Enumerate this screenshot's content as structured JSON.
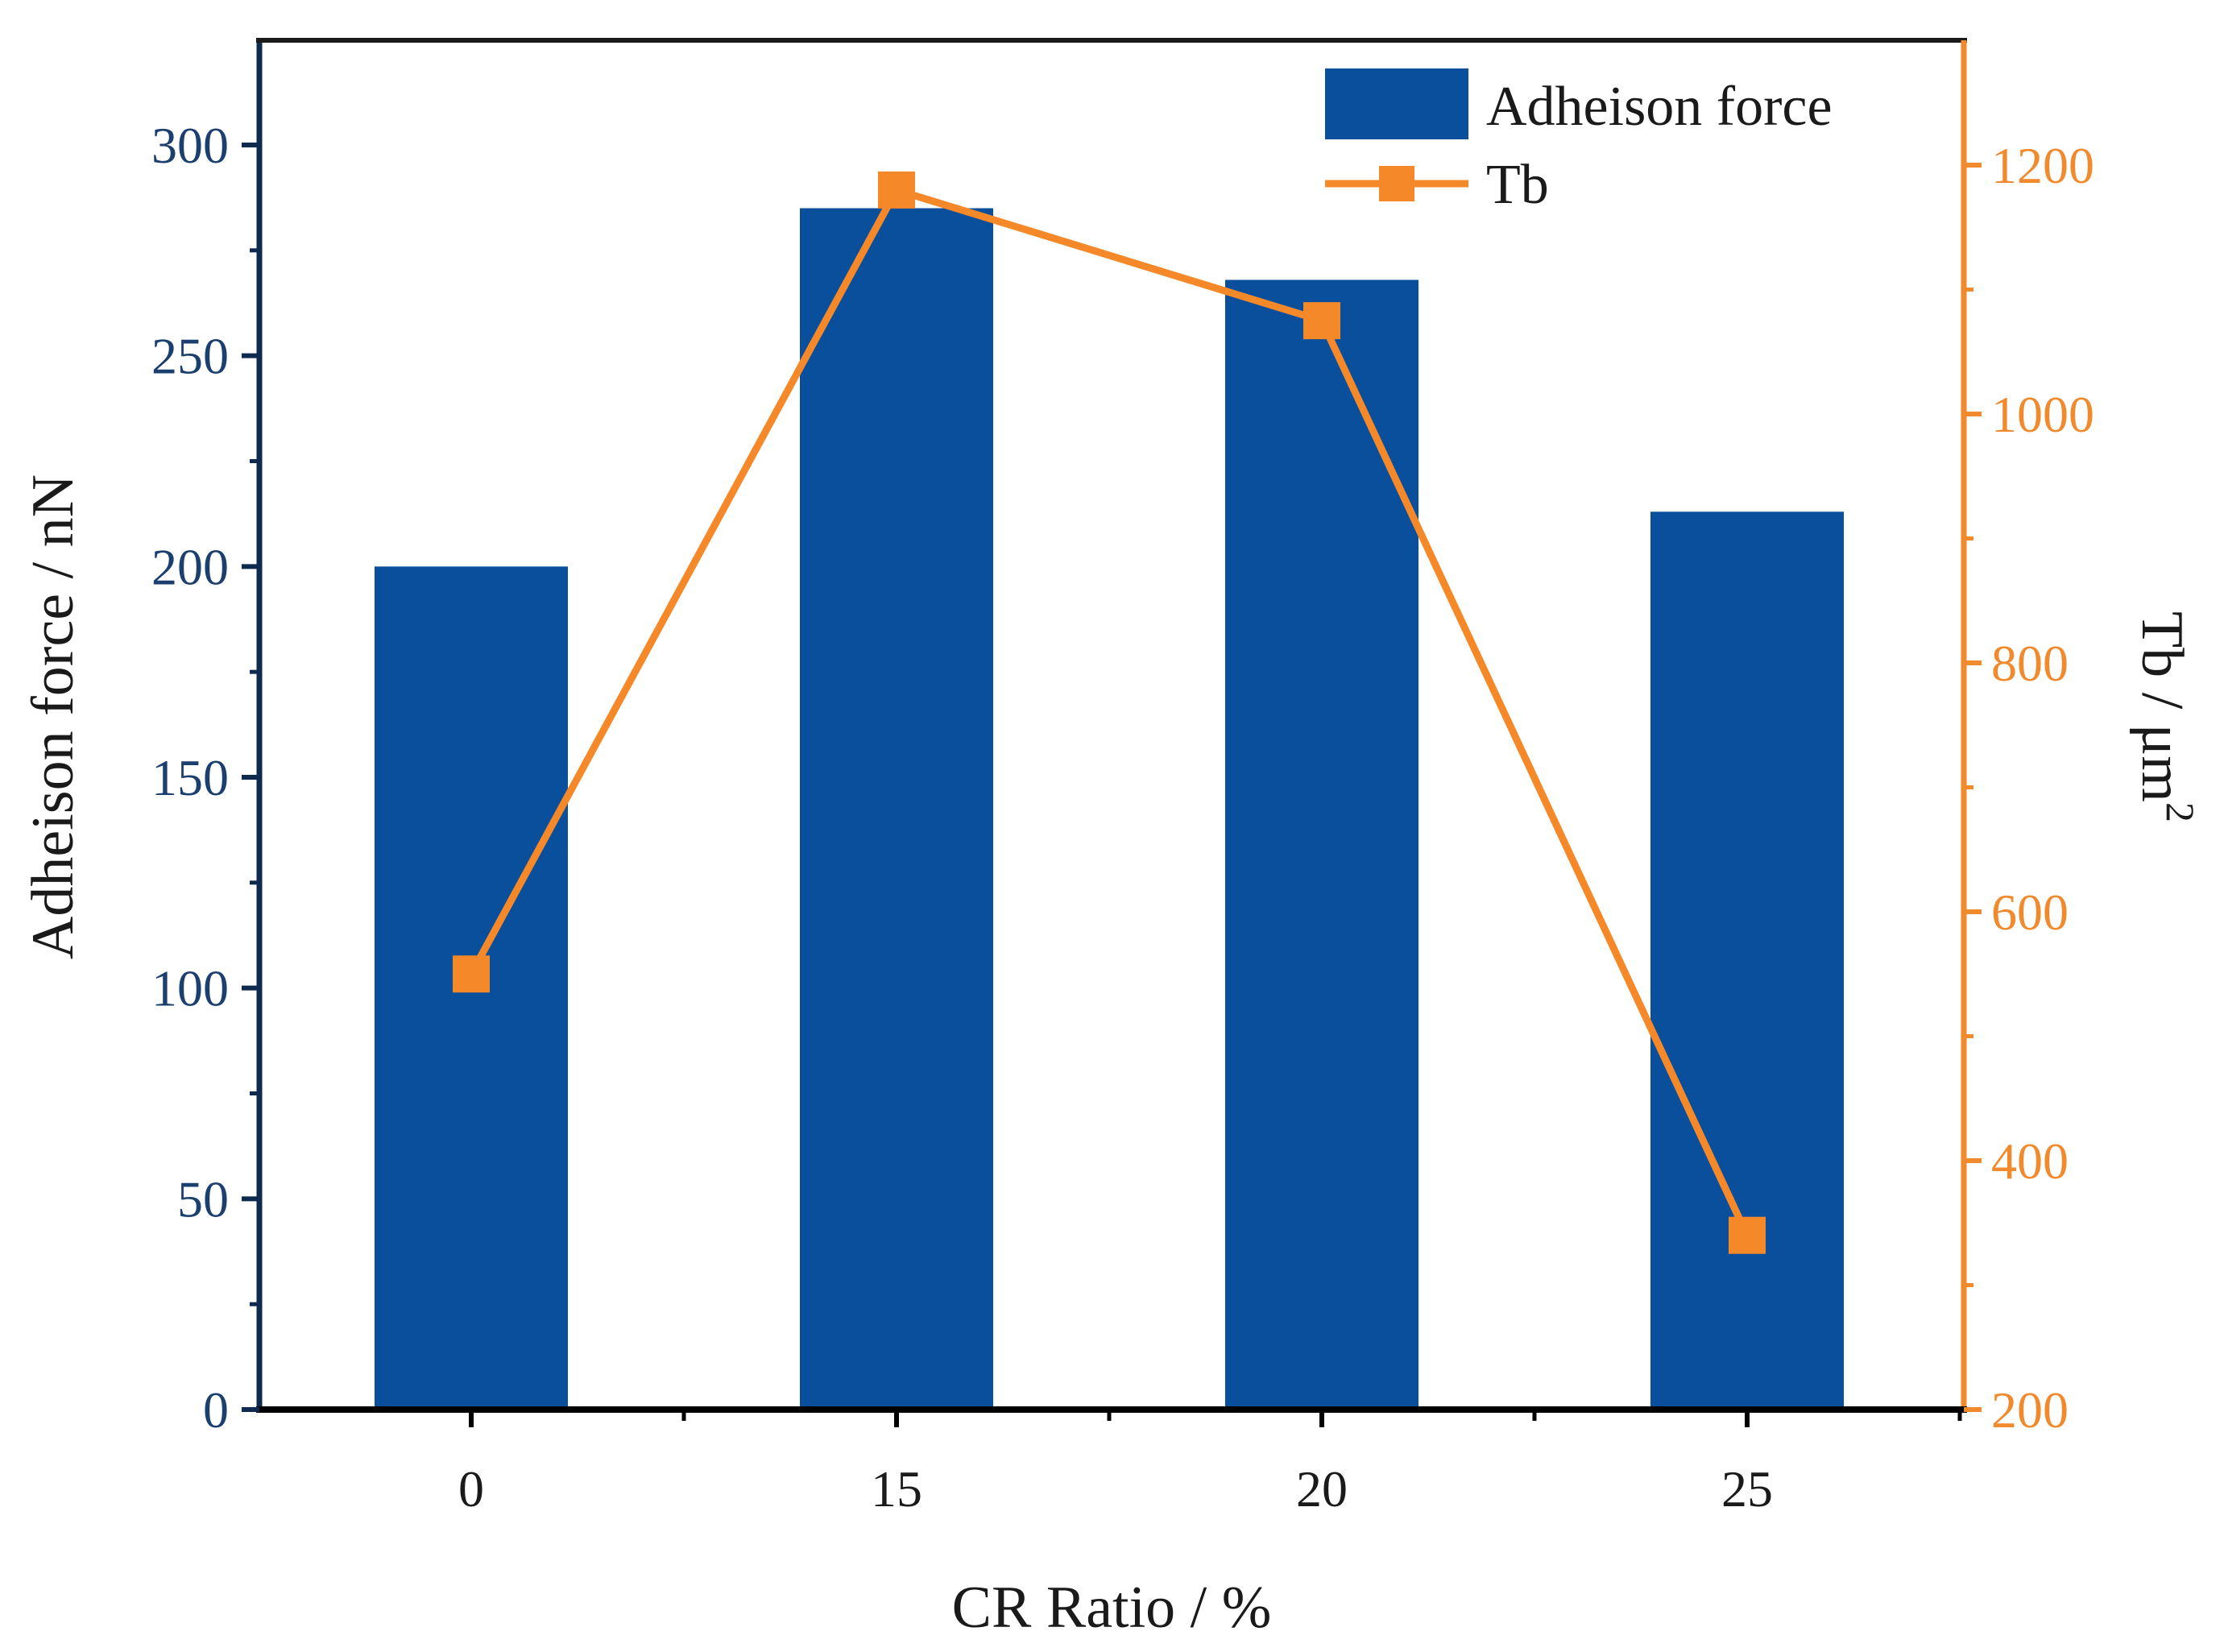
{
  "chart_data": {
    "type": "bar+line",
    "categories": [
      "0",
      "15",
      "20",
      "25"
    ],
    "series": [
      {
        "name": "Adheison force",
        "kind": "bar",
        "axis": "left",
        "color": "#0a4f9c",
        "values": [
          200,
          285,
          268,
          213
        ]
      },
      {
        "name": "Tb",
        "kind": "line",
        "axis": "right",
        "color": "#f5892a",
        "marker": "square",
        "values": [
          550,
          1180,
          1075,
          340
        ]
      }
    ],
    "xlabel": "CR Ratio / %",
    "ylabel_left": "Adheison force / nN",
    "ylabel_right_base": "Tb / μm",
    "ylabel_right_sup": "2",
    "ylim_left": [
      0,
      325
    ],
    "ylim_right": [
      200,
      1300
    ],
    "yticks_left": [
      0,
      50,
      100,
      150,
      200,
      250,
      300
    ],
    "yticks_right": [
      200,
      400,
      600,
      800,
      1000,
      1200
    ],
    "legend_position": "top-right",
    "left_axis_color": "#1b3f6e",
    "right_axis_color": "#f08a2c",
    "grid": false
  }
}
